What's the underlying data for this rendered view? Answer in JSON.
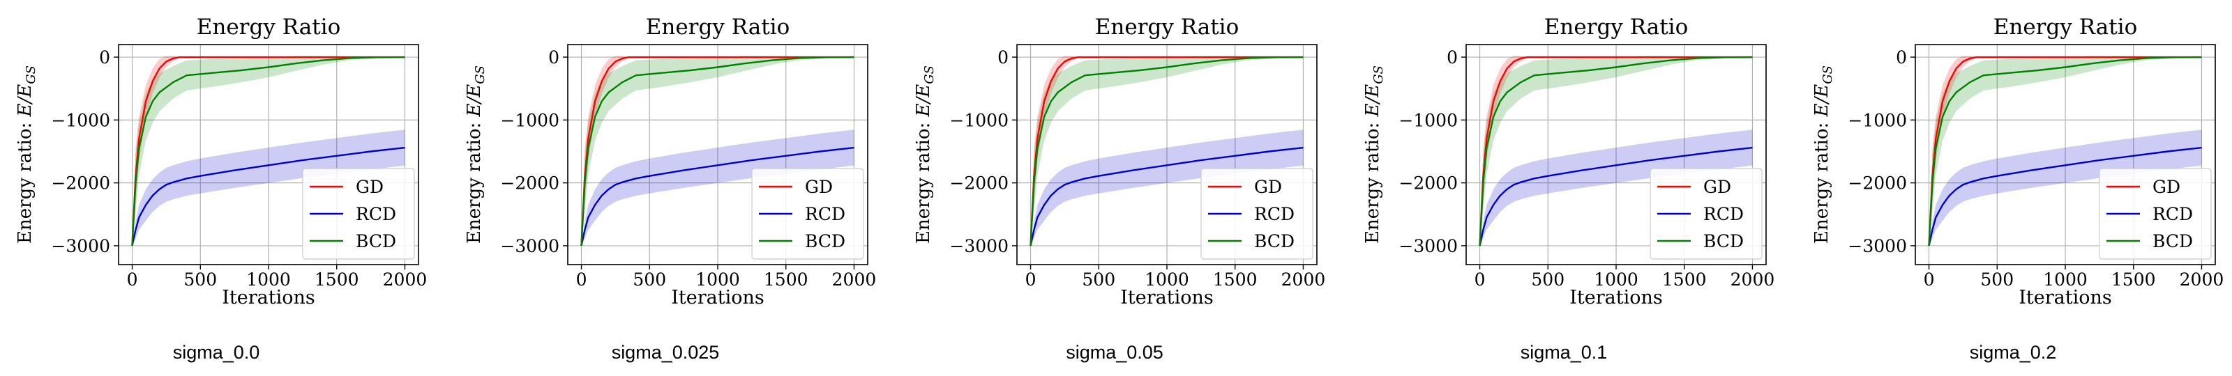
{
  "chart_data": [
    {
      "type": "line",
      "title": "Energy Ratio",
      "xlabel": "Iterations",
      "ylabel_prefix": "Energy ratio: ",
      "ylabel_math": "E/E",
      "ylabel_sub": "GS",
      "xlim": [
        -100,
        2100
      ],
      "ylim": [
        -3300,
        200
      ],
      "xticks": [
        0,
        500,
        1000,
        1500,
        2000
      ],
      "yticks": [
        0,
        -1000,
        -2000,
        -3000
      ],
      "xtick_labels": [
        "0",
        "500",
        "1000",
        "1500",
        "2000"
      ],
      "ytick_labels": [
        "0",
        "−1000",
        "−2000",
        "−3000"
      ],
      "grid": true,
      "legend_position": "lower-right",
      "caption": "sigma_0.0",
      "series": [
        {
          "name": "GD",
          "color": "#ff0000",
          "x": [
            0,
            25,
            50,
            100,
            150,
            200,
            250,
            300,
            350,
            400,
            2000
          ],
          "y": [
            -3000,
            -1900,
            -1300,
            -700,
            -380,
            -180,
            -70,
            -20,
            0,
            0,
            0
          ],
          "band": [
            0,
            450,
            350,
            260,
            200,
            150,
            90,
            40,
            10,
            0,
            0
          ]
        },
        {
          "name": "RCD",
          "color": "#0000cc",
          "x": [
            0,
            25,
            50,
            100,
            150,
            200,
            250,
            300,
            400,
            500,
            750,
            1000,
            1250,
            1500,
            1750,
            2000
          ],
          "y": [
            -3000,
            -2750,
            -2550,
            -2350,
            -2200,
            -2100,
            -2030,
            -1990,
            -1930,
            -1890,
            -1800,
            -1720,
            -1640,
            -1570,
            -1500,
            -1440
          ],
          "band": [
            0,
            130,
            200,
            250,
            260,
            265,
            270,
            272,
            275,
            278,
            280,
            282,
            283,
            284,
            285,
            285
          ]
        },
        {
          "name": "BCD",
          "color": "#008000",
          "x": [
            0,
            25,
            50,
            100,
            150,
            200,
            300,
            400,
            600,
            800,
            1000,
            1200,
            1400,
            1600,
            1800,
            2000
          ],
          "y": [
            -3000,
            -2000,
            -1450,
            -950,
            -700,
            -560,
            -400,
            -290,
            -250,
            -210,
            -160,
            -100,
            -50,
            -15,
            -3,
            0
          ],
          "band": [
            0,
            450,
            420,
            380,
            340,
            300,
            260,
            240,
            220,
            190,
            160,
            120,
            70,
            30,
            10,
            0
          ]
        }
      ]
    },
    {
      "type": "line",
      "title": "Energy Ratio",
      "xlabel": "Iterations",
      "ylabel_prefix": "Energy ratio: ",
      "ylabel_math": "E/E",
      "ylabel_sub": "GS",
      "xlim": [
        -100,
        2100
      ],
      "ylim": [
        -3300,
        200
      ],
      "xticks": [
        0,
        500,
        1000,
        1500,
        2000
      ],
      "yticks": [
        0,
        -1000,
        -2000,
        -3000
      ],
      "xtick_labels": [
        "0",
        "500",
        "1000",
        "1500",
        "2000"
      ],
      "ytick_labels": [
        "0",
        "−1000",
        "−2000",
        "−3000"
      ],
      "grid": true,
      "legend_position": "lower-right",
      "caption": "sigma_0.025",
      "series": [
        {
          "name": "GD",
          "color": "#ff0000",
          "x": [
            0,
            25,
            50,
            100,
            150,
            200,
            250,
            300,
            350,
            400,
            2000
          ],
          "y": [
            -3000,
            -1900,
            -1300,
            -700,
            -380,
            -180,
            -70,
            -20,
            0,
            0,
            0
          ],
          "band": [
            0,
            450,
            350,
            260,
            200,
            150,
            90,
            40,
            10,
            0,
            0
          ]
        },
        {
          "name": "RCD",
          "color": "#0000cc",
          "x": [
            0,
            25,
            50,
            100,
            150,
            200,
            250,
            300,
            400,
            500,
            750,
            1000,
            1250,
            1500,
            1750,
            2000
          ],
          "y": [
            -3000,
            -2750,
            -2550,
            -2350,
            -2200,
            -2100,
            -2030,
            -1990,
            -1930,
            -1890,
            -1800,
            -1720,
            -1640,
            -1570,
            -1500,
            -1440
          ],
          "band": [
            0,
            130,
            200,
            250,
            260,
            265,
            270,
            272,
            275,
            278,
            280,
            282,
            283,
            284,
            285,
            285
          ]
        },
        {
          "name": "BCD",
          "color": "#008000",
          "x": [
            0,
            25,
            50,
            100,
            150,
            200,
            300,
            400,
            600,
            800,
            1000,
            1200,
            1400,
            1600,
            1800,
            2000
          ],
          "y": [
            -3000,
            -2000,
            -1450,
            -950,
            -700,
            -560,
            -400,
            -290,
            -250,
            -210,
            -160,
            -100,
            -50,
            -15,
            -3,
            0
          ],
          "band": [
            0,
            450,
            420,
            380,
            340,
            300,
            260,
            240,
            220,
            190,
            160,
            120,
            70,
            30,
            10,
            0
          ]
        }
      ]
    },
    {
      "type": "line",
      "title": "Energy Ratio",
      "xlabel": "Iterations",
      "ylabel_prefix": "Energy ratio: ",
      "ylabel_math": "E/E",
      "ylabel_sub": "GS",
      "xlim": [
        -100,
        2100
      ],
      "ylim": [
        -3300,
        200
      ],
      "xticks": [
        0,
        500,
        1000,
        1500,
        2000
      ],
      "yticks": [
        0,
        -1000,
        -2000,
        -3000
      ],
      "xtick_labels": [
        "0",
        "500",
        "1000",
        "1500",
        "2000"
      ],
      "ytick_labels": [
        "0",
        "−1000",
        "−2000",
        "−3000"
      ],
      "grid": true,
      "legend_position": "lower-right",
      "caption": "sigma_0.05",
      "series": [
        {
          "name": "GD",
          "color": "#ff0000",
          "x": [
            0,
            25,
            50,
            100,
            150,
            200,
            250,
            300,
            350,
            400,
            2000
          ],
          "y": [
            -3000,
            -1900,
            -1300,
            -700,
            -380,
            -180,
            -70,
            -20,
            0,
            0,
            0
          ],
          "band": [
            0,
            450,
            350,
            260,
            200,
            150,
            90,
            40,
            10,
            0,
            0
          ]
        },
        {
          "name": "RCD",
          "color": "#0000cc",
          "x": [
            0,
            25,
            50,
            100,
            150,
            200,
            250,
            300,
            400,
            500,
            750,
            1000,
            1250,
            1500,
            1750,
            2000
          ],
          "y": [
            -3000,
            -2750,
            -2550,
            -2350,
            -2200,
            -2100,
            -2030,
            -1990,
            -1930,
            -1890,
            -1800,
            -1720,
            -1640,
            -1570,
            -1500,
            -1440
          ],
          "band": [
            0,
            130,
            200,
            250,
            260,
            265,
            270,
            272,
            275,
            278,
            280,
            282,
            283,
            284,
            285,
            285
          ]
        },
        {
          "name": "BCD",
          "color": "#008000",
          "x": [
            0,
            25,
            50,
            100,
            150,
            200,
            300,
            400,
            600,
            800,
            1000,
            1200,
            1400,
            1600,
            1800,
            2000
          ],
          "y": [
            -3000,
            -2000,
            -1450,
            -950,
            -700,
            -560,
            -400,
            -290,
            -250,
            -210,
            -160,
            -100,
            -50,
            -15,
            -3,
            0
          ],
          "band": [
            0,
            450,
            420,
            380,
            340,
            300,
            260,
            240,
            220,
            190,
            160,
            120,
            70,
            30,
            10,
            0
          ]
        }
      ]
    },
    {
      "type": "line",
      "title": "Energy Ratio",
      "xlabel": "Iterations",
      "ylabel_prefix": "Energy ratio: ",
      "ylabel_math": "E/E",
      "ylabel_sub": "GS",
      "xlim": [
        -100,
        2100
      ],
      "ylim": [
        -3300,
        200
      ],
      "xticks": [
        0,
        500,
        1000,
        1500,
        2000
      ],
      "yticks": [
        0,
        -1000,
        -2000,
        -3000
      ],
      "xtick_labels": [
        "0",
        "500",
        "1000",
        "1500",
        "2000"
      ],
      "ytick_labels": [
        "0",
        "−1000",
        "−2000",
        "−3000"
      ],
      "grid": true,
      "legend_position": "lower-right",
      "caption": "sigma_0.1",
      "series": [
        {
          "name": "GD",
          "color": "#ff0000",
          "x": [
            0,
            25,
            50,
            100,
            150,
            200,
            250,
            300,
            350,
            400,
            2000
          ],
          "y": [
            -3000,
            -1900,
            -1300,
            -700,
            -380,
            -180,
            -70,
            -20,
            0,
            0,
            0
          ],
          "band": [
            0,
            450,
            350,
            260,
            200,
            150,
            90,
            40,
            10,
            0,
            0
          ]
        },
        {
          "name": "RCD",
          "color": "#0000cc",
          "x": [
            0,
            25,
            50,
            100,
            150,
            200,
            250,
            300,
            400,
            500,
            750,
            1000,
            1250,
            1500,
            1750,
            2000
          ],
          "y": [
            -3000,
            -2750,
            -2550,
            -2350,
            -2200,
            -2100,
            -2030,
            -1990,
            -1930,
            -1890,
            -1800,
            -1720,
            -1640,
            -1570,
            -1500,
            -1440
          ],
          "band": [
            0,
            130,
            200,
            250,
            260,
            265,
            270,
            272,
            275,
            278,
            280,
            282,
            283,
            284,
            285,
            285
          ]
        },
        {
          "name": "BCD",
          "color": "#008000",
          "x": [
            0,
            25,
            50,
            100,
            150,
            200,
            300,
            400,
            600,
            800,
            1000,
            1200,
            1400,
            1600,
            1800,
            2000
          ],
          "y": [
            -3000,
            -2000,
            -1450,
            -950,
            -700,
            -560,
            -400,
            -290,
            -250,
            -210,
            -160,
            -100,
            -50,
            -15,
            -3,
            0
          ],
          "band": [
            0,
            450,
            420,
            380,
            340,
            300,
            260,
            240,
            220,
            190,
            160,
            120,
            70,
            30,
            10,
            0
          ]
        }
      ]
    },
    {
      "type": "line",
      "title": "Energy Ratio",
      "xlabel": "Iterations",
      "ylabel_prefix": "Energy ratio: ",
      "ylabel_math": "E/E",
      "ylabel_sub": "GS",
      "xlim": [
        -100,
        2100
      ],
      "ylim": [
        -3300,
        200
      ],
      "xticks": [
        0,
        500,
        1000,
        1500,
        2000
      ],
      "yticks": [
        0,
        -1000,
        -2000,
        -3000
      ],
      "xtick_labels": [
        "0",
        "500",
        "1000",
        "1500",
        "2000"
      ],
      "ytick_labels": [
        "0",
        "−1000",
        "−2000",
        "−3000"
      ],
      "grid": true,
      "legend_position": "lower-right",
      "caption": "sigma_0.2",
      "series": [
        {
          "name": "GD",
          "color": "#ff0000",
          "x": [
            0,
            25,
            50,
            100,
            150,
            200,
            250,
            300,
            350,
            400,
            2000
          ],
          "y": [
            -3000,
            -1900,
            -1300,
            -700,
            -380,
            -180,
            -70,
            -20,
            0,
            0,
            0
          ],
          "band": [
            0,
            450,
            350,
            260,
            200,
            150,
            90,
            40,
            10,
            0,
            0
          ]
        },
        {
          "name": "RCD",
          "color": "#0000cc",
          "x": [
            0,
            25,
            50,
            100,
            150,
            200,
            250,
            300,
            400,
            500,
            750,
            1000,
            1250,
            1500,
            1750,
            2000
          ],
          "y": [
            -3000,
            -2750,
            -2550,
            -2350,
            -2200,
            -2100,
            -2030,
            -1990,
            -1930,
            -1890,
            -1800,
            -1720,
            -1640,
            -1570,
            -1500,
            -1440
          ],
          "band": [
            0,
            130,
            200,
            250,
            260,
            265,
            270,
            272,
            275,
            278,
            280,
            282,
            283,
            284,
            285,
            285
          ]
        },
        {
          "name": "BCD",
          "color": "#008000",
          "x": [
            0,
            25,
            50,
            100,
            150,
            200,
            300,
            400,
            600,
            800,
            1000,
            1200,
            1400,
            1600,
            1800,
            2000
          ],
          "y": [
            -3000,
            -2000,
            -1450,
            -950,
            -700,
            -560,
            -400,
            -290,
            -250,
            -210,
            -160,
            -100,
            -50,
            -15,
            -3,
            0
          ],
          "band": [
            0,
            450,
            420,
            380,
            340,
            300,
            260,
            240,
            220,
            190,
            160,
            120,
            70,
            30,
            10,
            0
          ]
        }
      ]
    }
  ]
}
